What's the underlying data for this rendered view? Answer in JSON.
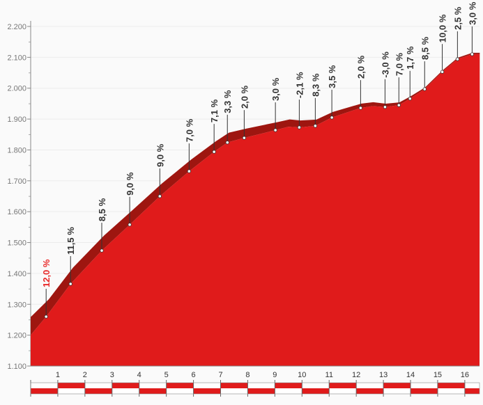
{
  "chart_data": {
    "type": "area",
    "xlabel": "",
    "ylabel": "",
    "xlim": [
      0,
      16.55
    ],
    "ylim": [
      1100,
      2200
    ],
    "y_ticks": [
      "1.100",
      "1.200",
      "1.300",
      "1.400",
      "1.500",
      "1.600",
      "1.700",
      "1.800",
      "1.900",
      "2.000",
      "2.100",
      "2.200"
    ],
    "x_ticks": [
      "1",
      "2",
      "3",
      "4",
      "5",
      "6",
      "7",
      "8",
      "9",
      "10",
      "11",
      "12",
      "13",
      "14",
      "15",
      "16"
    ],
    "grid": true,
    "profile": [
      [
        0,
        1200
      ],
      [
        0.57,
        1260
      ],
      [
        1.47,
        1366
      ],
      [
        2.62,
        1474
      ],
      [
        3.65,
        1558
      ],
      [
        4.76,
        1650
      ],
      [
        5.84,
        1731
      ],
      [
        6.76,
        1794
      ],
      [
        7.25,
        1824
      ],
      [
        7.87,
        1839
      ],
      [
        9.02,
        1864
      ],
      [
        9.5,
        1875
      ],
      [
        9.9,
        1873
      ],
      [
        10.49,
        1878
      ],
      [
        11.1,
        1905
      ],
      [
        12.16,
        1936
      ],
      [
        12.6,
        1942
      ],
      [
        13.06,
        1939
      ],
      [
        13.57,
        1945
      ],
      [
        13.98,
        1966
      ],
      [
        14.52,
        1997
      ],
      [
        15.17,
        2053
      ],
      [
        15.73,
        2094
      ],
      [
        16.27,
        2110
      ],
      [
        16.55,
        2110
      ]
    ],
    "gradients": [
      {
        "km": 0.57,
        "elev": 1260,
        "label": "12,0 %",
        "highlight": true
      },
      {
        "km": 1.47,
        "elev": 1366,
        "label": "11,5 %"
      },
      {
        "km": 2.62,
        "elev": 1474,
        "label": "8,5 %"
      },
      {
        "km": 3.65,
        "elev": 1558,
        "label": "9,0 %"
      },
      {
        "km": 4.76,
        "elev": 1650,
        "label": "9,0 %"
      },
      {
        "km": 5.84,
        "elev": 1731,
        "label": "7,0 %"
      },
      {
        "km": 6.76,
        "elev": 1794,
        "label": "7,1 %"
      },
      {
        "km": 7.25,
        "elev": 1824,
        "label": "3,3 %"
      },
      {
        "km": 7.87,
        "elev": 1839,
        "label": "2,0 %"
      },
      {
        "km": 9.02,
        "elev": 1864,
        "label": "3,0 %"
      },
      {
        "km": 9.9,
        "elev": 1873,
        "label": "-2,1 %"
      },
      {
        "km": 10.49,
        "elev": 1878,
        "label": "8,3 %"
      },
      {
        "km": 11.1,
        "elev": 1905,
        "label": "3,5 %"
      },
      {
        "km": 12.16,
        "elev": 1936,
        "label": "2,0 %"
      },
      {
        "km": 13.06,
        "elev": 1939,
        "label": "-3,0 %"
      },
      {
        "km": 13.57,
        "elev": 1945,
        "label": "7,0 %"
      },
      {
        "km": 13.98,
        "elev": 1966,
        "label": "1,7 %"
      },
      {
        "km": 14.52,
        "elev": 1997,
        "label": "8,5 %"
      },
      {
        "km": 15.17,
        "elev": 2053,
        "label": "10,0 %"
      },
      {
        "km": 15.73,
        "elev": 2094,
        "label": "2,5 %"
      },
      {
        "km": 16.27,
        "elev": 2110,
        "label": "3,0 %"
      }
    ],
    "colors": {
      "fill": "#e01b1b",
      "band": "#9e1610",
      "highlight": "#e82a2a",
      "text": "#333333"
    }
  }
}
